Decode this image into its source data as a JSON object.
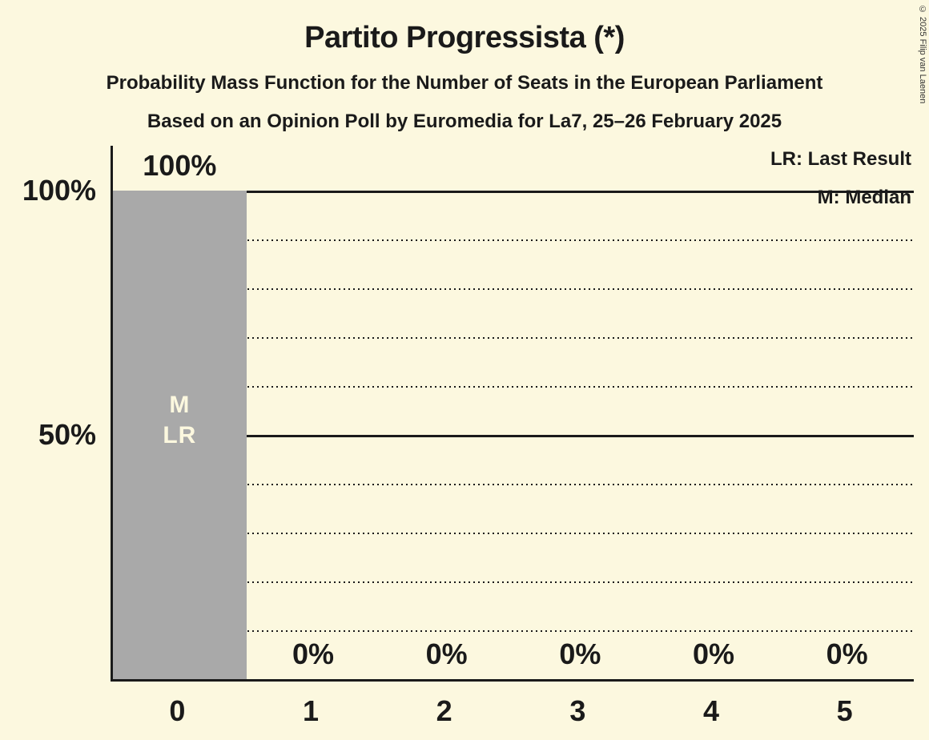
{
  "copyright": "© 2025 Filip van Laenen",
  "chart_data": {
    "type": "bar",
    "title": "Partito Progressista (*)",
    "subtitle1": "Probability Mass Function for the Number of Seats in the European Parliament",
    "subtitle2": "Based on an Opinion Poll by Euromedia for La7, 25–26 February 2025",
    "categories": [
      "0",
      "1",
      "2",
      "3",
      "4",
      "5"
    ],
    "values": [
      100,
      0,
      0,
      0,
      0,
      0
    ],
    "bar_labels": [
      "100%",
      "0%",
      "0%",
      "0%",
      "0%",
      "0%"
    ],
    "xlabel": "",
    "ylabel": "",
    "ylim": [
      0,
      100
    ],
    "y_ticks": [
      {
        "pct": 100,
        "label": "100%"
      },
      {
        "pct": 50,
        "label": "50%"
      }
    ],
    "gridlines": [
      {
        "pct": 10,
        "style": "dotted"
      },
      {
        "pct": 20,
        "style": "dotted"
      },
      {
        "pct": 30,
        "style": "dotted"
      },
      {
        "pct": 40,
        "style": "dotted"
      },
      {
        "pct": 50,
        "style": "solid"
      },
      {
        "pct": 60,
        "style": "dotted"
      },
      {
        "pct": 70,
        "style": "dotted"
      },
      {
        "pct": 80,
        "style": "dotted"
      },
      {
        "pct": 90,
        "style": "dotted"
      },
      {
        "pct": 100,
        "style": "solid"
      }
    ],
    "legend": [
      "LR: Last Result",
      "M: Median"
    ],
    "annotations": [
      {
        "category": "0",
        "lines": [
          "M",
          "LR"
        ]
      }
    ],
    "median_seats": 0,
    "last_result_seats": 0,
    "legend_position": "top-right",
    "grid": true,
    "colors": {
      "background": "#FCF8DF",
      "bar": "#A9A9A9",
      "text": "#1A1A1A",
      "bar_text": "#FCF8DF",
      "copyright_text": "#333333"
    }
  }
}
